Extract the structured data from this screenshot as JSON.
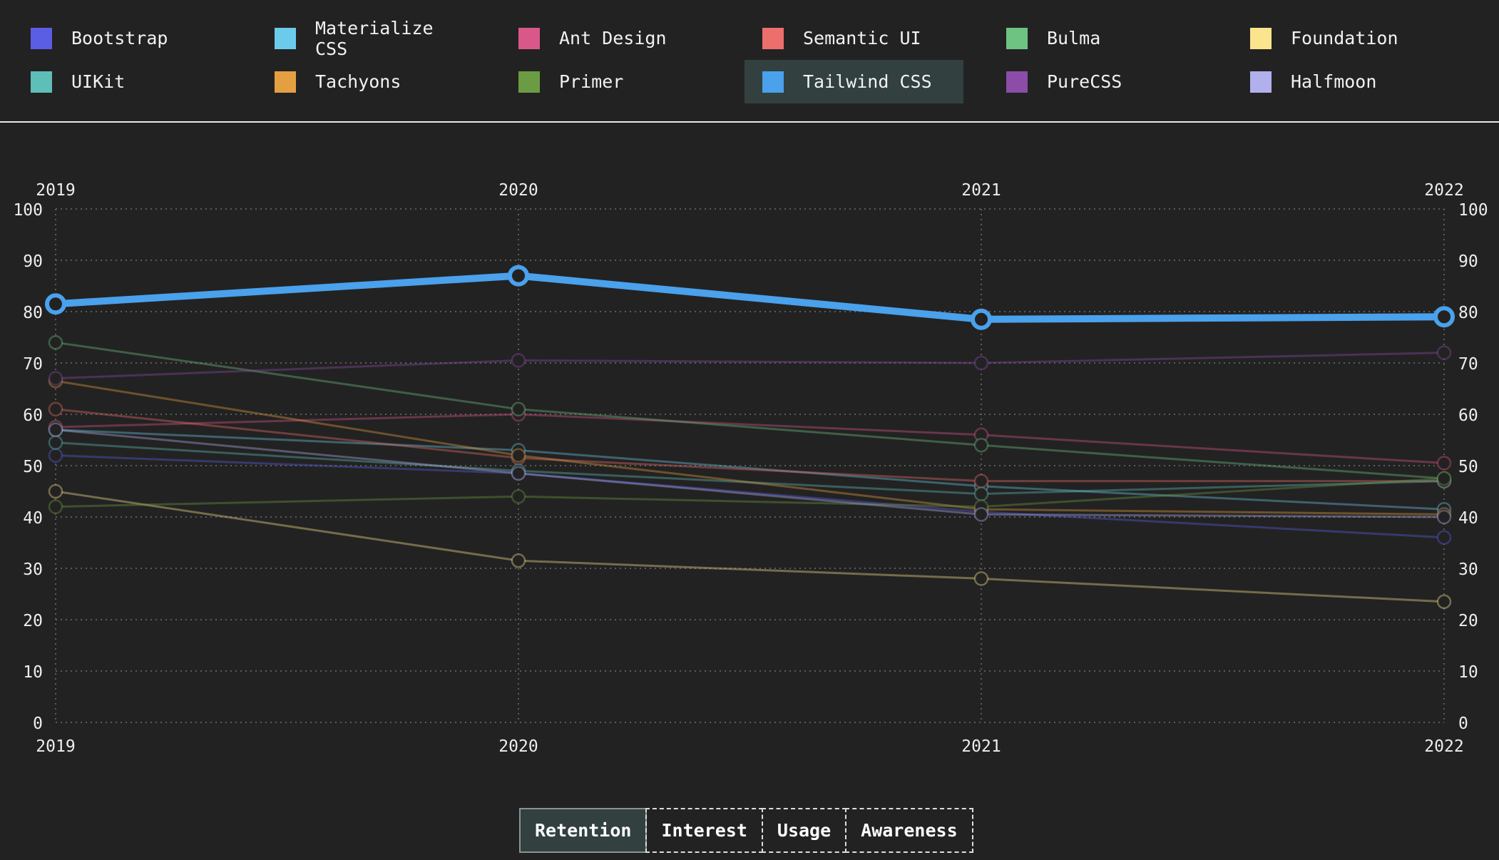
{
  "legend": {
    "items": [
      {
        "label": "Bootstrap",
        "color": "#5a5ee5"
      },
      {
        "label": "Materialize CSS",
        "color": "#6ccbea"
      },
      {
        "label": "Ant Design",
        "color": "#d9588a"
      },
      {
        "label": "Semantic UI",
        "color": "#ec6e6d"
      },
      {
        "label": "Bulma",
        "color": "#6ec383"
      },
      {
        "label": "Foundation",
        "color": "#fbe48e"
      },
      {
        "label": "UIKit",
        "color": "#5ebfb9"
      },
      {
        "label": "Tachyons",
        "color": "#e4a040"
      },
      {
        "label": "Primer",
        "color": "#6b9b43"
      },
      {
        "label": "Tailwind CSS",
        "color": "#4aa1ec"
      },
      {
        "label": "PureCSS",
        "color": "#8b4da8"
      },
      {
        "label": "Halfmoon",
        "color": "#b1b0ec"
      }
    ],
    "active": "Tailwind CSS"
  },
  "tabs": {
    "items": [
      "Retention",
      "Interest",
      "Usage",
      "Awareness"
    ],
    "active": "Retention"
  },
  "chart_data": {
    "type": "line",
    "x": [
      "2019",
      "2020",
      "2021",
      "2022"
    ],
    "ylim": [
      0,
      100
    ],
    "yticks": [
      0,
      10,
      20,
      30,
      40,
      50,
      60,
      70,
      80,
      90,
      100
    ],
    "grid": true,
    "highlighted_series": "Tailwind CSS",
    "series": [
      {
        "name": "Bootstrap",
        "color": "#5a5ee5",
        "values": [
          52,
          48.5,
          41,
          36
        ]
      },
      {
        "name": "Materialize CSS",
        "color": "#6ccbea",
        "values": [
          57,
          53,
          46,
          41.5
        ]
      },
      {
        "name": "Ant Design",
        "color": "#d9588a",
        "values": [
          57.5,
          60,
          56,
          50.5
        ]
      },
      {
        "name": "Semantic UI",
        "color": "#ec6e6d",
        "values": [
          61,
          51.5,
          47,
          47
        ]
      },
      {
        "name": "Bulma",
        "color": "#6ec383",
        "values": [
          74,
          61,
          54,
          47.5
        ]
      },
      {
        "name": "Foundation",
        "color": "#fbe48e",
        "values": [
          45,
          31.5,
          28,
          23.5
        ]
      },
      {
        "name": "UIKit",
        "color": "#5ebfb9",
        "values": [
          54.5,
          49,
          44.5,
          47
        ]
      },
      {
        "name": "Tachyons",
        "color": "#e4a040",
        "values": [
          66.5,
          52,
          41.5,
          40.5
        ]
      },
      {
        "name": "Primer",
        "color": "#6b9b43",
        "values": [
          42,
          44,
          42,
          47.5
        ]
      },
      {
        "name": "Tailwind CSS",
        "color": "#4aa1ec",
        "values": [
          81.5,
          87,
          78.5,
          79
        ]
      },
      {
        "name": "PureCSS",
        "color": "#8b4da8",
        "values": [
          67,
          70.5,
          70,
          72
        ]
      },
      {
        "name": "Halfmoon",
        "color": "#b1b0ec",
        "values": [
          57,
          48.5,
          40.5,
          40
        ]
      }
    ]
  }
}
